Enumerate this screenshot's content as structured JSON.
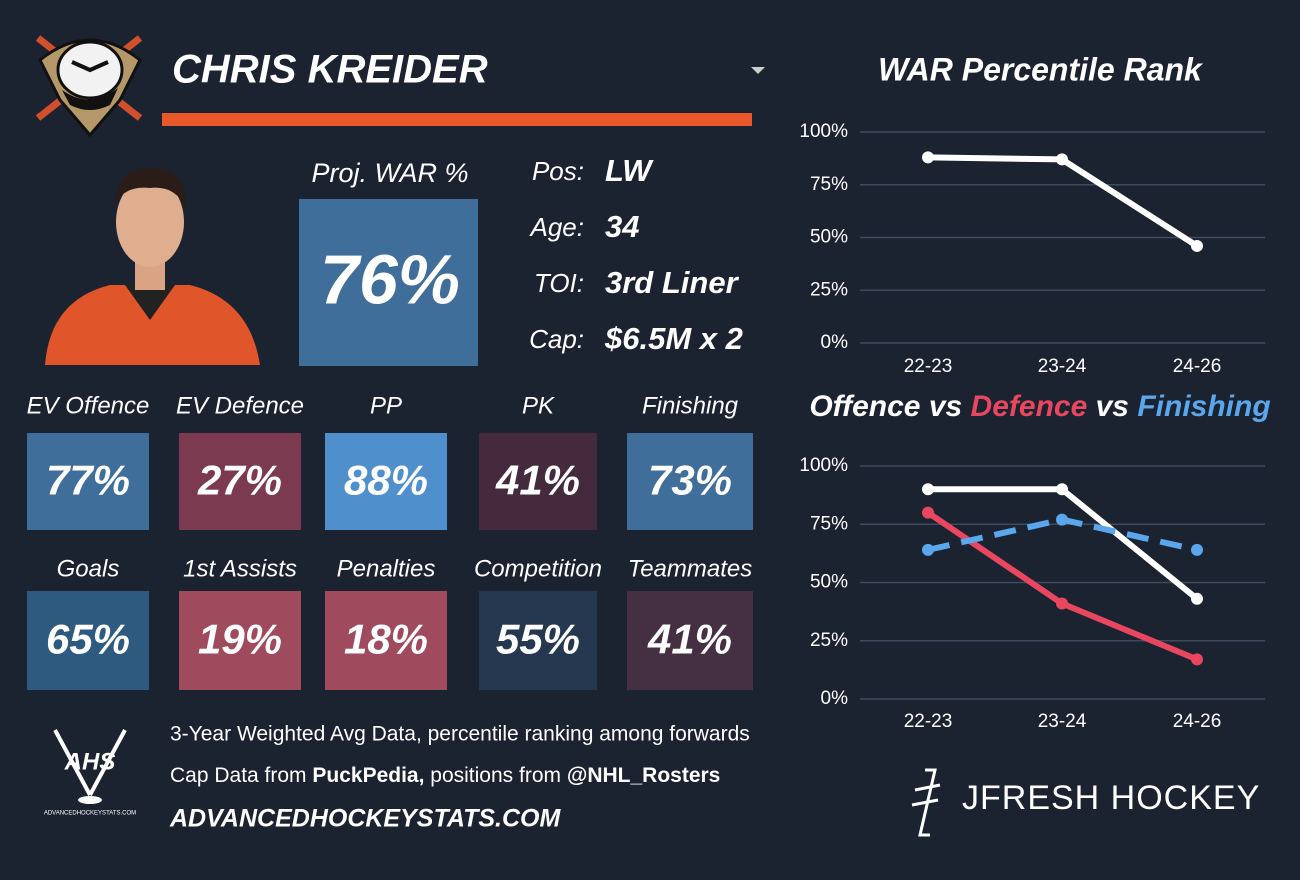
{
  "player": {
    "name": "CHRIS KREIDER",
    "proj_label": "Proj. WAR %",
    "proj_value": "76%",
    "proj_color": "#3f6e9b",
    "bio": [
      {
        "label": "Pos:",
        "value": "LW"
      },
      {
        "label": "Age:",
        "value": "34"
      },
      {
        "label": "TOI:",
        "value": "3rd Liner"
      },
      {
        "label": "Cap:",
        "value": "$6.5M x 2"
      }
    ]
  },
  "tiles": [
    {
      "label": "EV Offence",
      "value": "77%",
      "color": "#3f6e9b"
    },
    {
      "label": "EV Defence",
      "value": "27%",
      "color": "#7b3a4f"
    },
    {
      "label": "PP",
      "value": "88%",
      "color": "#4f90cc"
    },
    {
      "label": "PK",
      "value": "41%",
      "color": "#452a3d"
    },
    {
      "label": "Finishing",
      "value": "73%",
      "color": "#3f6e9b"
    },
    {
      "label": "Goals",
      "value": "65%",
      "color": "#2f5a80"
    },
    {
      "label": "1st Assists",
      "value": "19%",
      "color": "#a04a5e"
    },
    {
      "label": "Penalties",
      "value": "18%",
      "color": "#a04a5e"
    },
    {
      "label": "Competition",
      "value": "55%",
      "color": "#263850"
    },
    {
      "label": "Teammates",
      "value": "41%",
      "color": "#452f42"
    }
  ],
  "footer": {
    "logo": "AHS",
    "logo_caption": "ADVANCEDHOCKEYSTATS.COM",
    "line1": "3-Year Weighted Avg Data, percentile ranking among forwards",
    "line2": [
      {
        "text": "Cap Data from ",
        "bold": false
      },
      {
        "text": "PuckPedia,",
        "bold": true
      },
      {
        "text": " positions from ",
        "bold": false
      },
      {
        "text": "@NHL_Rosters",
        "bold": true
      }
    ],
    "line3": "ADVANCEDHOCKEYSTATS.COM",
    "brand": "JFRESH HOCKEY"
  },
  "chart_data": [
    {
      "type": "line",
      "title": "WAR Percentile Rank",
      "categories": [
        "22-23",
        "23-24",
        "24-26"
      ],
      "series": [
        {
          "name": null,
          "color": "#ffffff",
          "values": [
            88,
            87,
            46
          ]
        }
      ],
      "ylim": [
        0,
        100
      ],
      "yticks": [
        {
          "value": 0,
          "label": "0%"
        },
        {
          "value": 25,
          "label": "25%"
        },
        {
          "value": 50,
          "label": "50%"
        },
        {
          "value": 75,
          "label": "75%"
        },
        {
          "value": 100,
          "label": "100%"
        }
      ],
      "grid": true
    },
    {
      "type": "line",
      "title_separator": "vs",
      "categories": [
        "22-23",
        "23-24",
        "24-26"
      ],
      "series": [
        {
          "name": "Offence",
          "color": "#ffffff",
          "values": [
            90,
            90,
            43
          ],
          "dashed": false
        },
        {
          "name": "Defence",
          "color": "#e8475f",
          "values": [
            80,
            41,
            17
          ],
          "dashed": false
        },
        {
          "name": "Finishing",
          "color": "#5aa7ee",
          "values": [
            64,
            77,
            64
          ],
          "dashed": true
        }
      ],
      "ylim": [
        0,
        100
      ],
      "yticks": [
        {
          "value": 0,
          "label": "0%"
        },
        {
          "value": 25,
          "label": "25%"
        },
        {
          "value": 50,
          "label": "50%"
        },
        {
          "value": 75,
          "label": "75%"
        },
        {
          "value": 100,
          "label": "100%"
        }
      ],
      "grid": true
    }
  ]
}
